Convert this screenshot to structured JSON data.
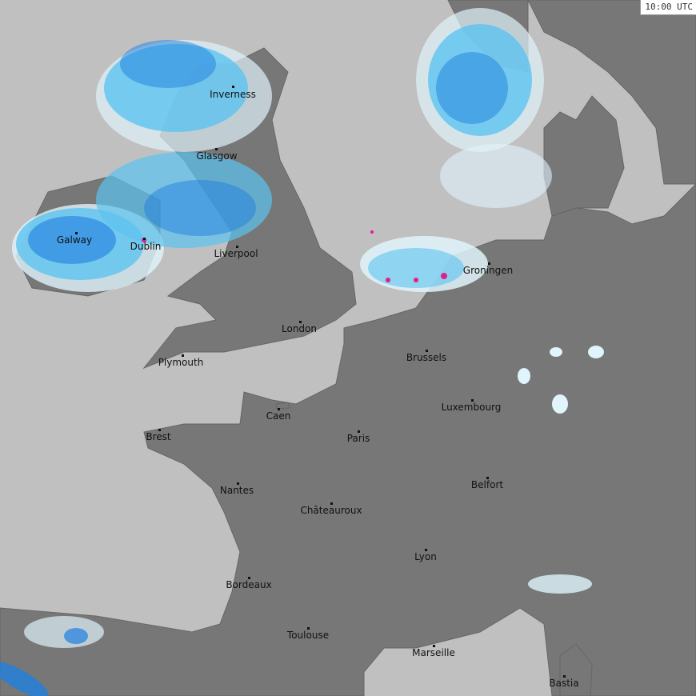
{
  "timestamp": "10:00 UTC",
  "colors": {
    "sea": "#c0c0c0",
    "land": "#777777",
    "rain_light": "#dff4fb",
    "rain_mid": "#5cc3f0",
    "rain_heavy": "#1f7fe0",
    "rain_extreme": "#e0208a"
  },
  "cities": [
    {
      "name": "Inverness"
    },
    {
      "name": "Glasgow"
    },
    {
      "name": "Galway"
    },
    {
      "name": "Dublin"
    },
    {
      "name": "Liverpool"
    },
    {
      "name": "London"
    },
    {
      "name": "Plymouth"
    },
    {
      "name": "Brussels"
    },
    {
      "name": "Groningen"
    },
    {
      "name": "Luxembourg"
    },
    {
      "name": "Caen"
    },
    {
      "name": "Brest"
    },
    {
      "name": "Paris"
    },
    {
      "name": "Belfort"
    },
    {
      "name": "Nantes"
    },
    {
      "name": "Châteauroux"
    },
    {
      "name": "Lyon"
    },
    {
      "name": "Bordeaux"
    },
    {
      "name": "Toulouse"
    },
    {
      "name": "Marseille"
    },
    {
      "name": "Bastia"
    }
  ]
}
